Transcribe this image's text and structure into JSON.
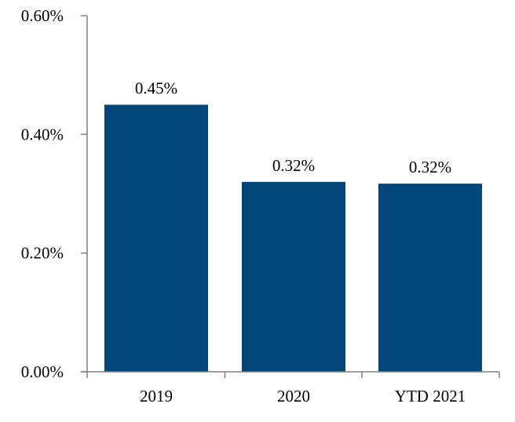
{
  "chart_data": {
    "type": "bar",
    "categories": [
      "2019",
      "2020",
      "YTD 2021"
    ],
    "values": [
      0.45,
      0.32,
      0.317
    ],
    "value_labels": [
      "0.45%",
      "0.32%",
      "0.32%"
    ],
    "y_ticks": [
      0,
      0.2,
      0.4,
      0.6
    ],
    "y_tick_labels": [
      "0.00%",
      "0.20%",
      "0.40%",
      "0.60%"
    ],
    "ylim": [
      0,
      0.6
    ],
    "y_unit": "%",
    "title": "",
    "xlabel": "",
    "ylabel": "",
    "grid": false,
    "legend": "none",
    "colors": {
      "bar": "#00467A",
      "axis": "#808080"
    }
  }
}
